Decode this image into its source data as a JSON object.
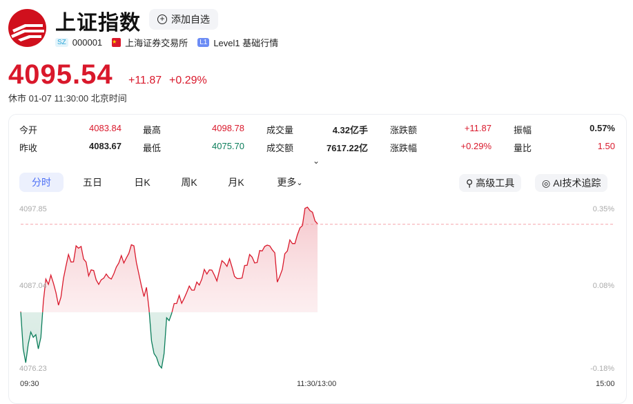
{
  "header": {
    "title": "上证指数",
    "add_watch": "添加自选",
    "market_code": "SZ",
    "code": "000001",
    "exchange": "上海证券交易所",
    "level_tag": "L1",
    "level": "Level1 基础行情"
  },
  "quote": {
    "price": "4095.54",
    "change": "+11.87",
    "change_pct": "+0.29%",
    "status": "休市 01-07 11:30:00 北京时间"
  },
  "stats": [
    {
      "label": "今开",
      "value": "4083.84",
      "color": "red"
    },
    {
      "label": "最高",
      "value": "4098.78",
      "color": "red"
    },
    {
      "label": "成交量",
      "value": "4.32亿手",
      "color": "black"
    },
    {
      "label": "涨跌额",
      "value": "+11.87",
      "color": "red"
    },
    {
      "label": "振幅",
      "value": "0.57%",
      "color": "black"
    },
    {
      "label": "昨收",
      "value": "4083.67",
      "color": "black"
    },
    {
      "label": "最低",
      "value": "4075.70",
      "color": "green"
    },
    {
      "label": "成交额",
      "value": "7617.22亿",
      "color": "black"
    },
    {
      "label": "涨跌幅",
      "value": "+0.29%",
      "color": "red"
    },
    {
      "label": "量比",
      "value": "1.50",
      "color": "red"
    }
  ],
  "tabs": [
    "分时",
    "五日",
    "日K",
    "周K",
    "月K",
    "更多"
  ],
  "active_tab": "分时",
  "tools": {
    "advanced": "高级工具",
    "ai": "AI技术追踪"
  },
  "colors": {
    "up": "#d9182b",
    "down": "#0a7d5a",
    "active_tab_bg": "#ecf0fd",
    "active_tab_text": "#4b6ef5"
  },
  "chart_data": {
    "type": "line",
    "y_labels_left": [
      "4097.85",
      "4087.04",
      "4076.23"
    ],
    "y_labels_right": [
      "0.35%",
      "0.08%",
      "-0.18%"
    ],
    "x_labels": [
      "09:30",
      "11:30/13:00",
      "15:00"
    ],
    "ylim": [
      4076.23,
      4097.85
    ],
    "prev_close": 4083.67,
    "last_price": 4095.54,
    "x_range": [
      "09:30",
      "11:30"
    ],
    "series": [
      {
        "values": [
          4083.76,
          4078.73,
          4076.86,
          4079.35,
          4081.0,
          4080.28,
          4080.65,
          4078.73,
          4080.28,
          4085.1,
          4088.15,
          4087.43,
          4088.68,
          4087.59,
          4086.34,
          4084.63,
          4085.72,
          4088.21,
          4089.92,
          4091.47,
          4090.45,
          4090.48,
          4092.63,
          4092.31,
          4092.56,
          4090.85,
          4090.45,
          4088.58,
          4089.39,
          4089.3,
          4088.05,
          4087.43,
          4088.05,
          4088.27,
          4088.83,
          4088.36,
          4088.15,
          4088.83,
          4089.76,
          4090.32,
          4091.32,
          4090.32,
          4091.01,
          4091.63,
          4092.78,
          4092.63,
          4090.39,
          4088.77,
          4087.21,
          4085.78,
          4087.03,
          4084.17,
          4079.81,
          4078.1,
          4077.58,
          4076.55,
          4076.15,
          4078.1,
          4082.92,
          4082.55,
          4083.48,
          4084.85,
          4084.85,
          4085.94,
          4084.88,
          4085.57,
          4086.34,
          4087.21,
          4086.66,
          4086.66,
          4087.74,
          4087.34,
          4088.15,
          4089.45,
          4088.83,
          4089.39,
          4089.36,
          4088.68,
          4087.9,
          4089.3,
          4090.63,
          4090.32,
          4089.86,
          4090.88,
          4089.76,
          4088.52,
          4088.21,
          4088.21,
          4088.3,
          4089.98,
          4090.01,
          4091.47,
          4091.1,
          4090.32,
          4090.39,
          4092.0,
          4091.94,
          4092.56,
          4092.72,
          4092.63,
          4092.1,
          4091.69,
          4087.74,
          4088.52,
          4089.45,
          4091.57,
          4091.94,
          4093.43,
          4092.94,
          4092.94,
          4094.12,
          4095.05,
          4095.36,
          4097.69,
          4097.85,
          4097.38,
          4097.17,
          4095.98,
          4095.61
        ]
      }
    ]
  }
}
